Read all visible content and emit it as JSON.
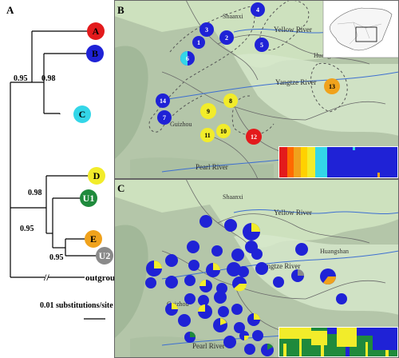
{
  "panels": {
    "a": "A",
    "b": "B",
    "c": "C"
  },
  "tree": {
    "tips": [
      {
        "label": "A",
        "color": "#e31a1c"
      },
      {
        "label": "B",
        "color": "#1f22d6"
      },
      {
        "label": "C",
        "color": "#33d6e8"
      },
      {
        "label": "D",
        "color": "#f2ec2a"
      },
      {
        "label": "U1",
        "color": "#1f8a3c"
      },
      {
        "label": "E",
        "color": "#f0a21c"
      },
      {
        "label": "U2",
        "color": "#8a8a8a"
      }
    ],
    "support": [
      "0.95",
      "0.98",
      "0.98",
      "0.95",
      "0.95"
    ],
    "break_mark": "//",
    "outgroup": "outgroup",
    "scale_label": "0.01 substitutions/site"
  },
  "map_b": {
    "rivers": {
      "yellow": "Yellow River",
      "yangtze": "Yangtze River",
      "pearl": "Pearl River"
    },
    "places": {
      "shaanxi": "Shaanxi",
      "huangshan": "Huangshan",
      "guizhou": "Guizhou"
    },
    "sites": [
      {
        "n": "1",
        "color": "#1f22d6"
      },
      {
        "n": "2",
        "color": "#1f22d6"
      },
      {
        "n": "3",
        "color": "#1f22d6"
      },
      {
        "n": "4",
        "color": "#1f22d6"
      },
      {
        "n": "5",
        "color": "#1f22d6"
      },
      {
        "n": "6",
        "color": "#1f22d6",
        "second": "#33d6e8"
      },
      {
        "n": "7",
        "color": "#1f22d6"
      },
      {
        "n": "8",
        "color": "#f2ec2a"
      },
      {
        "n": "9",
        "color": "#f2ec2a"
      },
      {
        "n": "10",
        "color": "#f2ec2a"
      },
      {
        "n": "11",
        "color": "#f2ec2a"
      },
      {
        "n": "12",
        "color": "#e31a1c"
      },
      {
        "n": "13",
        "color": "#f0a21c"
      },
      {
        "n": "14",
        "color": "#1f22d6"
      }
    ],
    "bar_colors": [
      "#e31a1c",
      "#ff6a00",
      "#f0a21c",
      "#ffd100",
      "#f2ec2a",
      "#33d6e8",
      "#1f22d6"
    ]
  },
  "map_c": {
    "rivers": {
      "yellow": "Yellow River",
      "yangtze": "Yangtze River",
      "pearl": "Pearl River"
    },
    "places": {
      "shaanxi": "Shaanxi",
      "huangshan": "Huangshan",
      "guizhou": "Guizhou"
    },
    "pie_colors": {
      "main": "#1f22d6",
      "yellow": "#f2ec2a",
      "green": "#1f8a3c",
      "orange": "#f0a21c",
      "gray": "#8a8a8a"
    }
  }
}
